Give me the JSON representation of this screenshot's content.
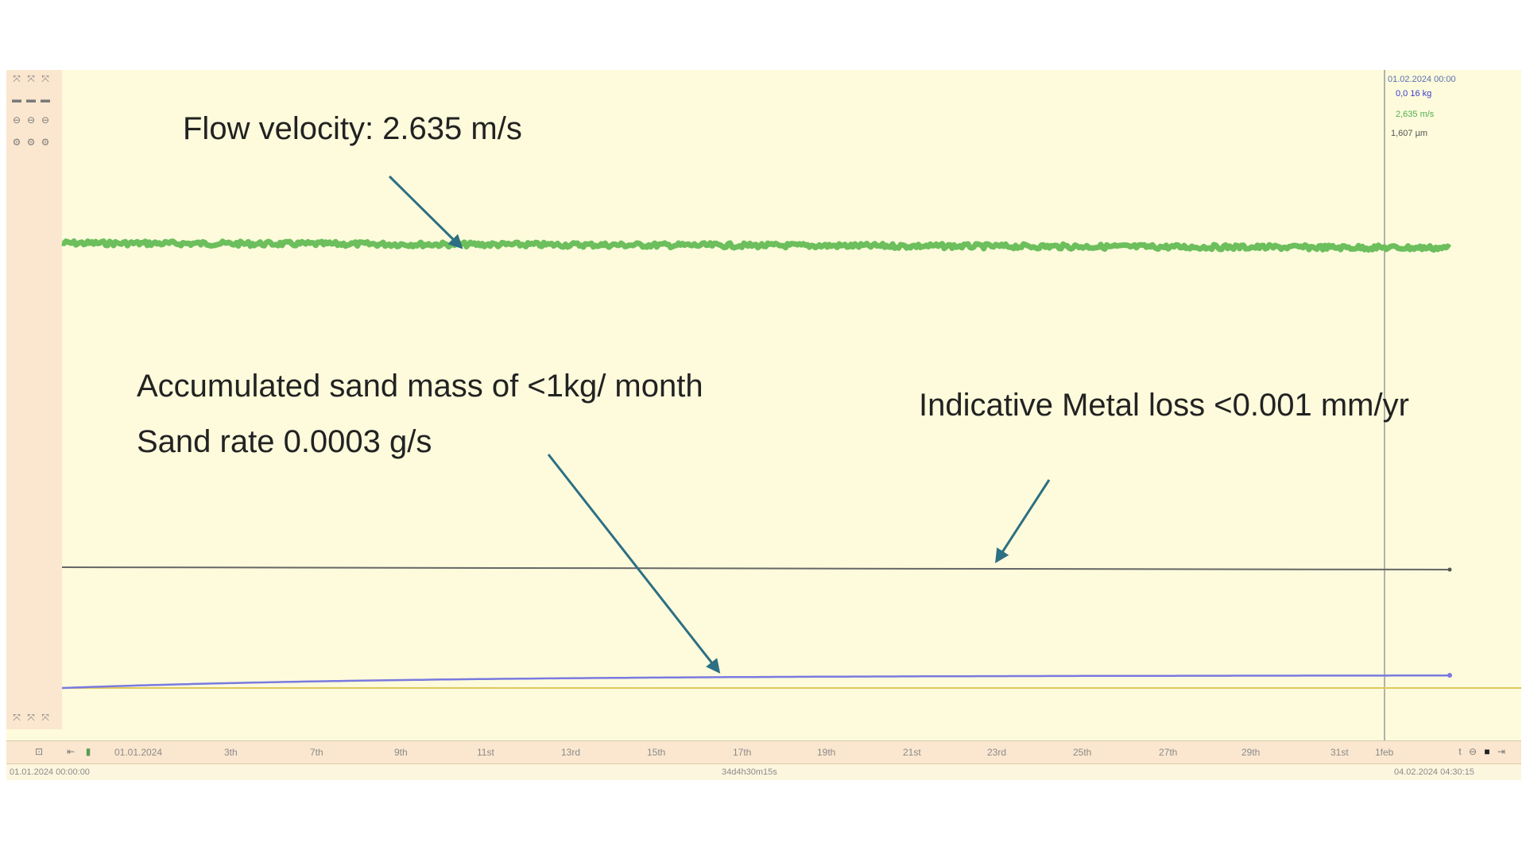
{
  "chart_data": {
    "type": "line",
    "x": [
      "01.01.2024",
      "3th",
      "7th",
      "9th",
      "11st",
      "13rd",
      "15th",
      "17th",
      "19th",
      "21st",
      "23rd",
      "25th",
      "27th",
      "29th",
      "31st",
      "1feb"
    ],
    "annotations": [
      "Flow velocity: 2.635 m/s",
      "Accumulated sand mass of <1kg/ month",
      "Sand rate 0.0003 g/s",
      "Indicative Metal loss <0.001 mm/yr"
    ],
    "legend": {
      "timestamp": "01.02.2024 00:00",
      "mass": "0,0 16 kg",
      "velocity": "2,635 m/s",
      "metal_loss": "1,607 µm"
    },
    "status": {
      "start": "01.01.2024 00:00:00",
      "duration": "34d4h30m15s",
      "end": "04.02.2024 04:30:15"
    },
    "colors": {
      "velocity": "#6cbf5c",
      "metal_loss": "#666666",
      "sand_mass": "#7a7ae0",
      "zero_line": "#e0c85a",
      "arrow": "#2d6f83"
    },
    "grid": true
  },
  "toolbar": {
    "icons": [
      "zoom-icon",
      "pan-icon",
      "lock-icon",
      "chart-settings-icon"
    ],
    "nav_icons": [
      "first-page-icon",
      "play-icon",
      "stop-icon",
      "last-page-icon"
    ]
  }
}
